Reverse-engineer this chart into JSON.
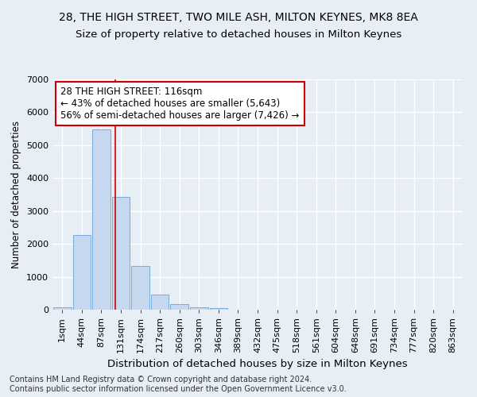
{
  "title1": "28, THE HIGH STREET, TWO MILE ASH, MILTON KEYNES, MK8 8EA",
  "title2": "Size of property relative to detached houses in Milton Keynes",
  "xlabel": "Distribution of detached houses by size in Milton Keynes",
  "ylabel": "Number of detached properties",
  "footnote": "Contains HM Land Registry data © Crown copyright and database right 2024.\nContains public sector information licensed under the Open Government Licence v3.0.",
  "bar_labels": [
    "1sqm",
    "44sqm",
    "87sqm",
    "131sqm",
    "174sqm",
    "217sqm",
    "260sqm",
    "303sqm",
    "346sqm",
    "389sqm",
    "432sqm",
    "475sqm",
    "518sqm",
    "561sqm",
    "604sqm",
    "648sqm",
    "691sqm",
    "734sqm",
    "777sqm",
    "820sqm",
    "863sqm"
  ],
  "bar_values": [
    80,
    2280,
    5480,
    3430,
    1330,
    460,
    160,
    80,
    50,
    0,
    0,
    0,
    0,
    0,
    0,
    0,
    0,
    0,
    0,
    0,
    0
  ],
  "bar_color": "#c5d8f0",
  "bar_edge_color": "#6aa3d4",
  "bg_color": "#e8eef6",
  "grid_color": "#ffffff",
  "vline_color": "#cc0000",
  "vline_x": 2.72,
  "ylim": [
    0,
    7000
  ],
  "yticks": [
    0,
    1000,
    2000,
    3000,
    4000,
    5000,
    6000,
    7000
  ],
  "annotation_text": "28 THE HIGH STREET: 116sqm\n← 43% of detached houses are smaller (5,643)\n56% of semi-detached houses are larger (7,426) →",
  "annotation_box_color": "#ffffff",
  "annotation_box_edge": "#cc0000",
  "title1_fontsize": 10,
  "title2_fontsize": 9.5,
  "xlabel_fontsize": 9.5,
  "ylabel_fontsize": 8.5,
  "tick_fontsize": 8,
  "annotation_fontsize": 8.5,
  "footnote_fontsize": 7
}
